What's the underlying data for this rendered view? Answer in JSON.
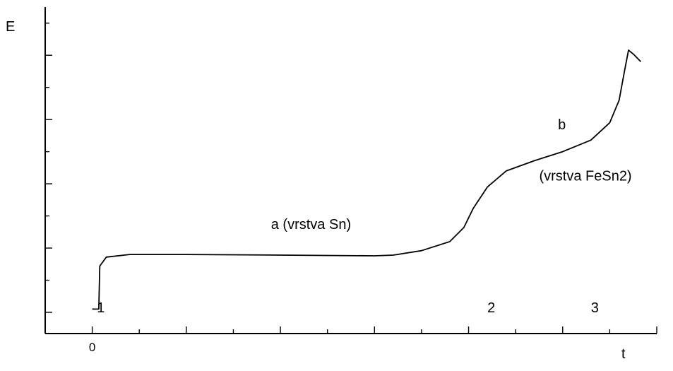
{
  "chart_data": {
    "type": "line",
    "title": "",
    "xlabel": "t",
    "ylabel": "E",
    "x_tick_labels": [
      "0"
    ],
    "series": [
      {
        "points": [
          [
            0.0,
            0.05
          ],
          [
            0.07,
            0.05
          ],
          [
            0.08,
            0.72
          ],
          [
            0.15,
            0.86
          ],
          [
            0.4,
            0.9
          ],
          [
            1.0,
            0.9
          ],
          [
            2.0,
            0.89
          ],
          [
            3.0,
            0.88
          ],
          [
            3.2,
            0.89
          ],
          [
            3.5,
            0.96
          ],
          [
            3.8,
            1.1
          ],
          [
            3.95,
            1.32
          ],
          [
            4.05,
            1.62
          ],
          [
            4.2,
            1.95
          ],
          [
            4.4,
            2.2
          ],
          [
            4.7,
            2.36
          ],
          [
            5.0,
            2.5
          ],
          [
            5.3,
            2.68
          ],
          [
            5.5,
            2.95
          ],
          [
            5.6,
            3.3
          ],
          [
            5.65,
            3.7
          ],
          [
            5.7,
            4.08
          ],
          [
            5.75,
            4.02
          ],
          [
            5.83,
            3.9
          ]
        ]
      }
    ],
    "annotations": [
      {
        "text": "1",
        "x": 0.05,
        "y": 0.0
      },
      {
        "text": "2",
        "x": 4.2,
        "y": 0.0
      },
      {
        "text": "3",
        "x": 5.3,
        "y": 0.0
      },
      {
        "text": "a  (vrstva Sn)",
        "x": 1.9,
        "y": 1.3
      },
      {
        "text": "(vrstva FeSn2)",
        "x": 4.75,
        "y": 2.05
      },
      {
        "text": "b",
        "x": 4.95,
        "y": 2.85
      }
    ],
    "xlim": [
      -0.5,
      6.0
    ],
    "ylim": [
      -0.33,
      4.75
    ],
    "x_major_ticks": [
      0,
      1,
      2,
      3,
      4,
      5,
      6
    ],
    "x_minor_step": 0.5,
    "y_major_ticks": [
      0,
      1,
      2,
      3,
      4
    ],
    "y_minor_step": 0.5,
    "grid": false
  }
}
